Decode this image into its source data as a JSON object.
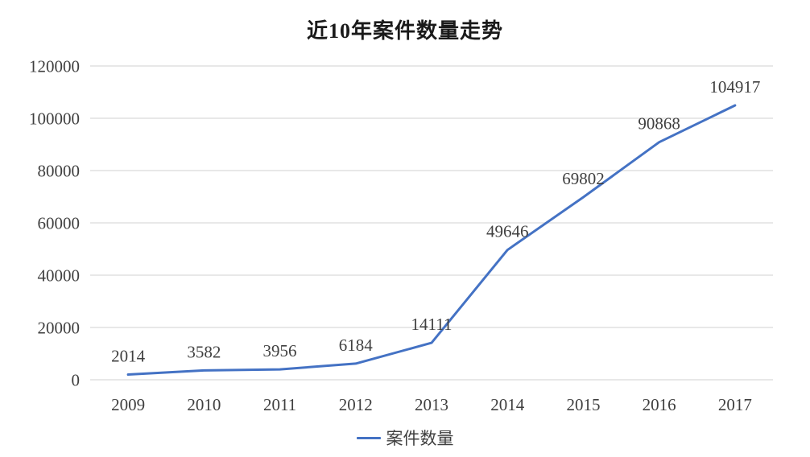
{
  "chart_data": {
    "type": "line",
    "title": "近10年案件数量走势",
    "categories": [
      "2009",
      "2010",
      "2011",
      "2012",
      "2013",
      "2014",
      "2015",
      "2016",
      "2017"
    ],
    "series": [
      {
        "name": "案件数量",
        "values": [
          2014,
          3582,
          3956,
          6184,
          14111,
          49646,
          69802,
          90868,
          104917
        ]
      }
    ],
    "xlabel": "",
    "ylabel": "",
    "ylim": [
      0,
      120000
    ],
    "ytick_step": 20000,
    "ytick_labels": [
      "0",
      "20000",
      "40000",
      "60000",
      "80000",
      "100000",
      "120000"
    ],
    "grid": true,
    "data_labels_visible": true,
    "legend_position": "bottom",
    "colors": {
      "line": "#4472C4",
      "gridline": "#E0E0E0",
      "axis_text": "#3f3f3f",
      "data_label_text": "#404040",
      "title_text": "#1a1a1a"
    }
  }
}
